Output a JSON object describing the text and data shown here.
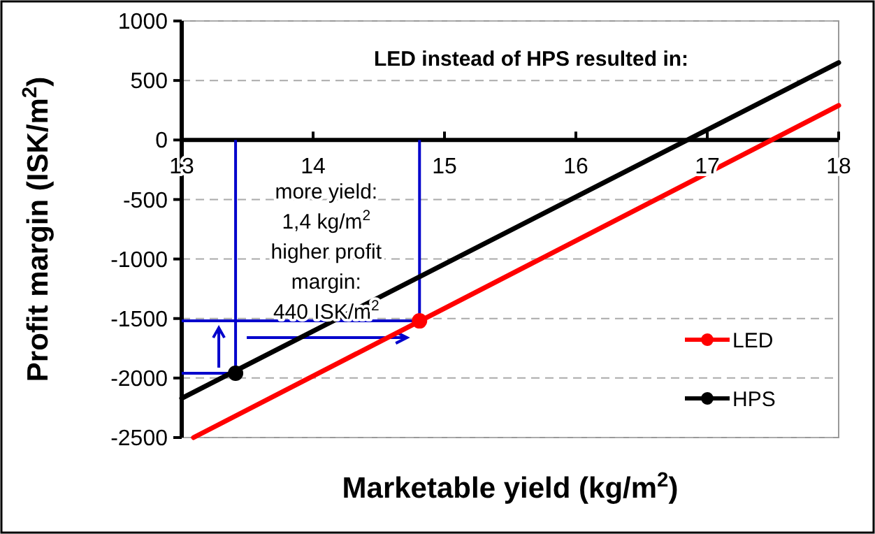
{
  "chart_data": {
    "type": "line",
    "xlabel": "Marketable yield (kg/m$^{2}$)",
    "ylabel": "Profit margin (ISK/m$^{2}$)",
    "xlim": [
      13,
      18
    ],
    "xticks": [
      13,
      14,
      15,
      16,
      17,
      18
    ],
    "ylim": [
      -2500,
      1000
    ],
    "yticks": [
      -2500,
      -2000,
      -1500,
      -1000,
      -500,
      0,
      500,
      1000
    ],
    "grid": "y",
    "legend": "bottom right",
    "line_style": "solid",
    "annotations": [
      "LED instead of HPS resulted in:",
      "more yield:\n1,4 kg/m$^{2}$\nhigher profit\nmargin:\n440 ISK/m$^{2}$"
    ],
    "series": [
      {
        "name": "LED",
        "color": "#ff0000",
        "marker": "none",
        "x": [
          13.09,
          18
        ],
        "values": [
          -2500,
          290
        ]
      },
      {
        "name": "HPS",
        "color": "#000000",
        "marker": "none",
        "x": [
          13,
          18
        ],
        "values": [
          -2170,
          650
        ]
      },
      {
        "type": "scatter",
        "color": "#ff0000",
        "marker": "circle",
        "x": [
          14.81
        ],
        "values": [
          -1520
        ]
      },
      {
        "type": "scatter",
        "color": "#000000",
        "marker": "circle",
        "x": [
          13.41
        ],
        "values": [
          -1960
        ]
      }
    ]
  }
}
